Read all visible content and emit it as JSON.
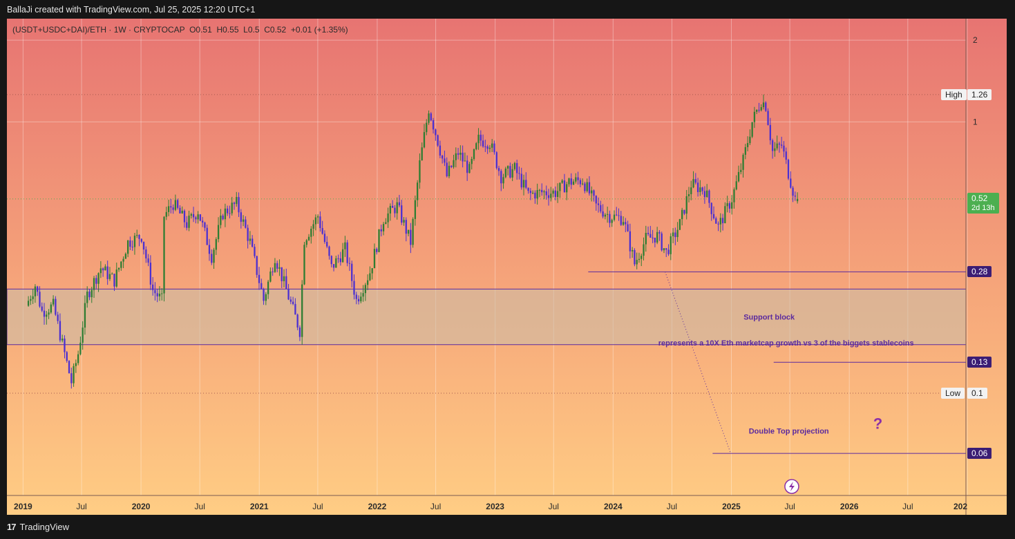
{
  "header": {
    "created_by": "BallaJi created with TradingView.com, Jul 25, 2025 12:20 UTC+1"
  },
  "symbol": {
    "name": "(USDT+USDC+DAI)/ETH",
    "interval": "1W",
    "exchange": "CRYPTOCAP",
    "open": "O0.51",
    "high": "H0.55",
    "low": "L0.5",
    "close": "C0.52",
    "change": "+0.01 (+1.35%)"
  },
  "footer": {
    "brand": "TradingView",
    "logo_text": "17"
  },
  "colors": {
    "bull": "#2e7d32",
    "bear": "#4b2fd1",
    "drawing": "#5b2a9e",
    "last_price": "#4caf50",
    "gradient_top": "#e77472",
    "gradient_bottom": "#ffcd84"
  },
  "chart_data": {
    "type": "candlestick",
    "y_scale": "log",
    "y_range": [
      0.042,
      2.4
    ],
    "x_range": [
      "2018-11-12",
      "2026-12-28"
    ],
    "x_ticks": [
      {
        "date": "2019-01-01",
        "label": "2019",
        "bold": true
      },
      {
        "date": "2019-07-01",
        "label": "Jul",
        "bold": false
      },
      {
        "date": "2020-01-01",
        "label": "2020",
        "bold": true
      },
      {
        "date": "2020-07-01",
        "label": "Jul",
        "bold": false
      },
      {
        "date": "2021-01-01",
        "label": "2021",
        "bold": true
      },
      {
        "date": "2021-07-01",
        "label": "Jul",
        "bold": false
      },
      {
        "date": "2022-01-01",
        "label": "2022",
        "bold": true
      },
      {
        "date": "2022-07-01",
        "label": "Jul",
        "bold": false
      },
      {
        "date": "2023-01-01",
        "label": "2023",
        "bold": true
      },
      {
        "date": "2023-07-01",
        "label": "Jul",
        "bold": false
      },
      {
        "date": "2024-01-01",
        "label": "2024",
        "bold": true
      },
      {
        "date": "2024-07-01",
        "label": "Jul",
        "bold": false
      },
      {
        "date": "2025-01-01",
        "label": "2025",
        "bold": true
      },
      {
        "date": "2025-07-01",
        "label": "Jul",
        "bold": false
      },
      {
        "date": "2026-01-01",
        "label": "2026",
        "bold": true
      },
      {
        "date": "2026-07-01",
        "label": "Jul",
        "bold": false
      },
      {
        "date": "2027-01-01",
        "label": "202",
        "bold": true
      }
    ],
    "y_ticks": [
      {
        "value": 2,
        "label": "2"
      },
      {
        "value": 1,
        "label": "1"
      }
    ],
    "series_path": [
      [
        "2019-01-14",
        0.21
      ],
      [
        "2019-02-11",
        0.25
      ],
      [
        "2019-03-04",
        0.2
      ],
      [
        "2019-04-08",
        0.21
      ],
      [
        "2019-05-13",
        0.14
      ],
      [
        "2019-06-03",
        0.11
      ],
      [
        "2019-06-24",
        0.14
      ],
      [
        "2019-07-22",
        0.23
      ],
      [
        "2019-09-02",
        0.29
      ],
      [
        "2019-10-14",
        0.26
      ],
      [
        "2019-11-25",
        0.36
      ],
      [
        "2020-01-06",
        0.38
      ],
      [
        "2020-02-10",
        0.24
      ],
      [
        "2020-03-09",
        0.22
      ],
      [
        "2020-03-16",
        0.45
      ],
      [
        "2020-04-13",
        0.5
      ],
      [
        "2020-05-25",
        0.42
      ],
      [
        "2020-06-29",
        0.47
      ],
      [
        "2020-08-10",
        0.32
      ],
      [
        "2020-09-14",
        0.46
      ],
      [
        "2020-10-26",
        0.5
      ],
      [
        "2020-12-07",
        0.36
      ],
      [
        "2021-01-18",
        0.22
      ],
      [
        "2021-02-22",
        0.32
      ],
      [
        "2021-03-29",
        0.24
      ],
      [
        "2021-05-10",
        0.17
      ],
      [
        "2021-05-24",
        0.37
      ],
      [
        "2021-07-05",
        0.45
      ],
      [
        "2021-08-16",
        0.29
      ],
      [
        "2021-09-27",
        0.34
      ],
      [
        "2021-11-01",
        0.22
      ],
      [
        "2021-12-13",
        0.28
      ],
      [
        "2022-01-24",
        0.44
      ],
      [
        "2022-03-07",
        0.49
      ],
      [
        "2022-04-18",
        0.36
      ],
      [
        "2022-05-16",
        0.7
      ],
      [
        "2022-06-13",
        1.12
      ],
      [
        "2022-07-11",
        0.85
      ],
      [
        "2022-08-08",
        0.63
      ],
      [
        "2022-09-12",
        0.77
      ],
      [
        "2022-10-17",
        0.66
      ],
      [
        "2022-11-14",
        0.86
      ],
      [
        "2022-12-19",
        0.84
      ],
      [
        "2023-01-23",
        0.63
      ],
      [
        "2023-03-06",
        0.67
      ],
      [
        "2023-04-17",
        0.54
      ],
      [
        "2023-05-29",
        0.55
      ],
      [
        "2023-07-10",
        0.55
      ],
      [
        "2023-08-21",
        0.6
      ],
      [
        "2023-10-02",
        0.61
      ],
      [
        "2023-11-13",
        0.49
      ],
      [
        "2023-12-25",
        0.45
      ],
      [
        "2024-02-05",
        0.44
      ],
      [
        "2024-03-11",
        0.3
      ],
      [
        "2024-04-15",
        0.37
      ],
      [
        "2024-05-20",
        0.38
      ],
      [
        "2024-06-17",
        0.33
      ],
      [
        "2024-07-29",
        0.42
      ],
      [
        "2024-09-02",
        0.59
      ],
      [
        "2024-10-14",
        0.56
      ],
      [
        "2024-11-25",
        0.41
      ],
      [
        "2025-01-06",
        0.52
      ],
      [
        "2025-02-10",
        0.72
      ],
      [
        "2025-03-10",
        1.0
      ],
      [
        "2025-04-07",
        1.2
      ],
      [
        "2025-04-21",
        1.15
      ],
      [
        "2025-05-12",
        0.78
      ],
      [
        "2025-06-09",
        0.82
      ],
      [
        "2025-06-30",
        0.65
      ],
      [
        "2025-07-21",
        0.52
      ]
    ],
    "last_candle": {
      "date": "2025-07-21",
      "open": 0.51,
      "high": 0.55,
      "low": 0.5,
      "close": 0.52
    },
    "all_time_high": 1.26,
    "all_time_low": 0.1,
    "price_labels": [
      {
        "value": 0.52,
        "text": "0.52",
        "sub": "2d 13h",
        "style": "last"
      },
      {
        "value": 1.26,
        "text": "1.26",
        "tag": "High",
        "style": "light"
      },
      {
        "value": 0.1,
        "text": "0.1",
        "tag": "Low",
        "style": "light"
      },
      {
        "value": 0.28,
        "text": "0.28",
        "style": "dark"
      },
      {
        "value": 0.13,
        "text": "0.13",
        "style": "dark"
      },
      {
        "value": 0.06,
        "text": "0.06",
        "style": "dark"
      }
    ],
    "support_zone": {
      "top": 0.242,
      "bottom": 0.151,
      "label": "Support block"
    },
    "lines": [
      {
        "value": 0.28,
        "from": "2023-10-16"
      },
      {
        "value": 0.13,
        "from": "2025-05-12"
      },
      {
        "value": 0.06,
        "from": "2024-11-04"
      }
    ],
    "dotted_projection": {
      "from": [
        "2024-06-10",
        0.28
      ],
      "to": [
        "2024-12-30",
        0.06
      ]
    },
    "annotations": [
      {
        "text": "represents a 10X Eth marketcap growth vs 3 of the biggets stablecoins",
        "date": "2024-05-20",
        "value": 0.15
      },
      {
        "text": "Double Top projection",
        "date": "2025-02-24",
        "value": 0.071
      },
      {
        "text": "?",
        "date": "2026-03-16",
        "value": 0.074
      }
    ]
  }
}
